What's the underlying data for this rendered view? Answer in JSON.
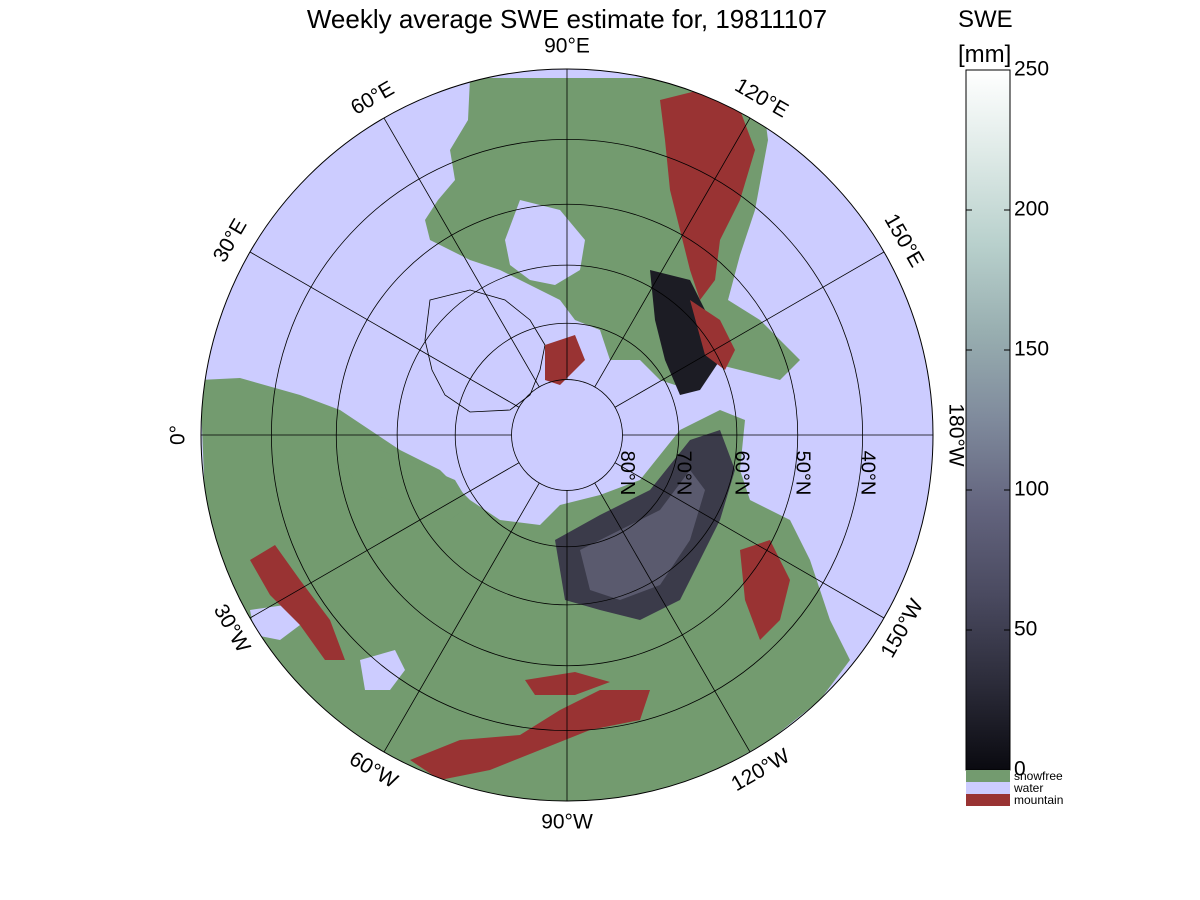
{
  "title": "Weekly average SWE estimate for, 19811107",
  "colorbar": {
    "title_line1": "SWE",
    "title_line2": "[mm]",
    "ticks": [
      "0",
      "50",
      "100",
      "150",
      "200",
      "250"
    ],
    "tick_values": [
      0,
      50,
      100,
      150,
      200,
      250
    ],
    "range": [
      0,
      250
    ],
    "gradient": [
      "#0a0a10",
      "#2c2c3a",
      "#4a4a60",
      "#63647e",
      "#7f8a9c",
      "#98aeb0",
      "#b8d0cc",
      "#dde9e6",
      "#ffffff"
    ],
    "categories": [
      {
        "label": "snowfree",
        "color": "#739b6f"
      },
      {
        "label": "water",
        "color": "#ccccff"
      },
      {
        "label": "mountain",
        "color": "#993333"
      }
    ]
  },
  "map": {
    "projection": "north polar stereographic",
    "ocean_color": "#ccccff",
    "land_color": "#739b6f",
    "mountain_color": "#993333",
    "longitude_labels": [
      {
        "text": "90°W",
        "lon_deg": -90
      },
      {
        "text": "120°W",
        "lon_deg": -120
      },
      {
        "text": "150°W",
        "lon_deg": -150
      },
      {
        "text": "180°W",
        "lon_deg": 180
      },
      {
        "text": "150°E",
        "lon_deg": 150
      },
      {
        "text": "120°E",
        "lon_deg": 120
      },
      {
        "text": "90°E",
        "lon_deg": 90
      },
      {
        "text": "60°E",
        "lon_deg": 60
      },
      {
        "text": "30°E",
        "lon_deg": 30
      },
      {
        "text": "0°",
        "lon_deg": 0
      },
      {
        "text": "30°W",
        "lon_deg": -30
      },
      {
        "text": "60°W",
        "lon_deg": -60
      }
    ],
    "latitude_labels": [
      {
        "text": "80°N",
        "lat_deg": 80
      },
      {
        "text": "70°N",
        "lat_deg": 70
      },
      {
        "text": "60°N",
        "lat_deg": 60
      },
      {
        "text": "50°N",
        "lat_deg": 50
      },
      {
        "text": "40°N",
        "lat_deg": 40
      }
    ]
  }
}
